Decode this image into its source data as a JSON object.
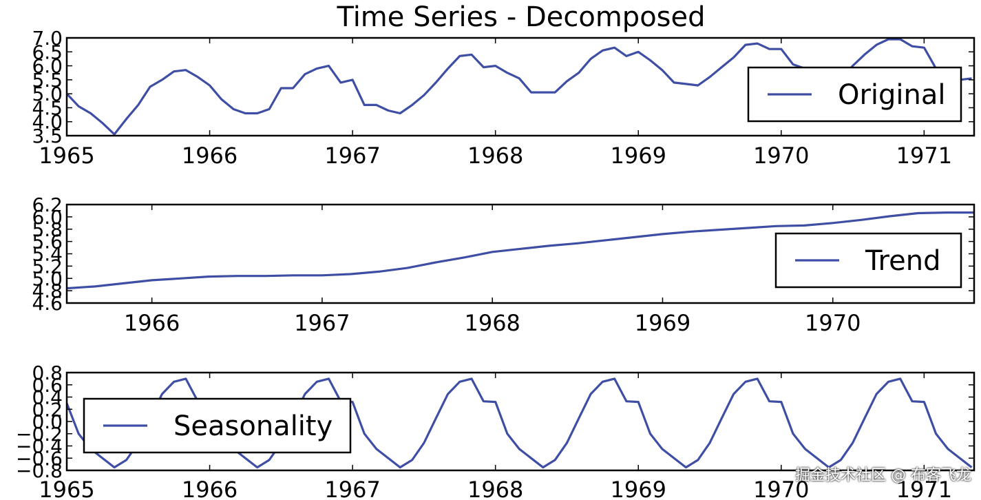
{
  "figure": {
    "title": "Time Series - Decomposed",
    "watermark": "掘金技术社区 @ 布客飞龙"
  },
  "colors": {
    "series": "#3f4ea5",
    "axes": "#000000",
    "background": "#ffffff"
  },
  "chart_data": [
    {
      "type": "line",
      "title": "",
      "xlabel": "",
      "ylabel": "",
      "xlim": [
        1965.0,
        1971.35
      ],
      "ylim": [
        3.5,
        7.0
      ],
      "xticks": [
        1965,
        1966,
        1967,
        1968,
        1969,
        1970,
        1971
      ],
      "yticks": [
        "3.5",
        "4.0",
        "4.5",
        "5.0",
        "5.5",
        "6.0",
        "6.5",
        "7.0"
      ],
      "legend": {
        "position": "right",
        "entries": [
          "Original"
        ]
      },
      "grid": false,
      "series": [
        {
          "name": "Original",
          "x": [
            1965.0,
            1965.083,
            1965.167,
            1965.25,
            1965.333,
            1965.417,
            1965.5,
            1965.583,
            1965.667,
            1965.75,
            1965.833,
            1965.917,
            1966.0,
            1966.083,
            1966.167,
            1966.25,
            1966.333,
            1966.417,
            1966.5,
            1966.583,
            1966.667,
            1966.75,
            1966.833,
            1966.917,
            1967.0,
            1967.083,
            1967.167,
            1967.25,
            1967.333,
            1967.417,
            1967.5,
            1967.583,
            1967.667,
            1967.75,
            1967.833,
            1967.917,
            1968.0,
            1968.083,
            1968.167,
            1968.25,
            1968.333,
            1968.417,
            1968.5,
            1968.583,
            1968.667,
            1968.75,
            1968.833,
            1968.917,
            1969.0,
            1969.083,
            1969.167,
            1969.25,
            1969.333,
            1969.417,
            1969.5,
            1969.583,
            1969.667,
            1969.75,
            1969.833,
            1969.917,
            1970.0,
            1970.083,
            1970.167,
            1970.25,
            1970.333,
            1970.417,
            1970.5,
            1970.583,
            1970.667,
            1970.75,
            1970.833,
            1970.917,
            1971.0,
            1971.083,
            1971.167,
            1971.25,
            1971.333
          ],
          "y": [
            5.0,
            4.55,
            4.3,
            3.95,
            3.55,
            4.1,
            4.6,
            5.25,
            5.5,
            5.8,
            5.85,
            5.6,
            5.3,
            4.8,
            4.45,
            4.3,
            4.3,
            4.45,
            5.2,
            5.2,
            5.7,
            5.9,
            6.0,
            5.4,
            5.5,
            4.6,
            4.6,
            4.4,
            4.3,
            4.6,
            4.95,
            5.4,
            5.9,
            6.35,
            6.4,
            5.95,
            6.0,
            5.75,
            5.55,
            5.05,
            5.05,
            5.05,
            5.45,
            5.75,
            6.25,
            6.55,
            6.65,
            6.35,
            6.5,
            6.2,
            5.85,
            5.4,
            5.35,
            5.3,
            5.6,
            5.95,
            6.3,
            6.75,
            6.8,
            6.6,
            6.6,
            6.05,
            5.9,
            5.55,
            5.55,
            5.55,
            6.0,
            6.4,
            6.75,
            6.95,
            6.95,
            6.7,
            6.65,
            5.9,
            5.6,
            5.5,
            5.55
          ]
        }
      ]
    },
    {
      "type": "line",
      "title": "",
      "xlabel": "",
      "ylabel": "",
      "xlim": [
        1965.5,
        1970.83
      ],
      "ylim": [
        4.6,
        6.2
      ],
      "xticks": [
        1966,
        1967,
        1968,
        1969,
        1970
      ],
      "yticks": [
        "4.6",
        "4.8",
        "5.0",
        "5.2",
        "5.4",
        "5.6",
        "5.8",
        "6.0",
        "6.2"
      ],
      "legend": {
        "position": "right",
        "entries": [
          "Trend"
        ]
      },
      "grid": false,
      "series": [
        {
          "name": "Trend",
          "x": [
            1965.5,
            1965.667,
            1965.833,
            1966.0,
            1966.167,
            1966.333,
            1966.5,
            1966.667,
            1966.833,
            1967.0,
            1967.167,
            1967.333,
            1967.5,
            1967.667,
            1967.833,
            1968.0,
            1968.167,
            1968.333,
            1968.5,
            1968.667,
            1968.833,
            1969.0,
            1969.167,
            1969.333,
            1969.5,
            1969.667,
            1969.833,
            1970.0,
            1970.167,
            1970.333,
            1970.5,
            1970.667,
            1970.833
          ],
          "y": [
            4.84,
            4.87,
            4.92,
            4.97,
            5.0,
            5.03,
            5.04,
            5.04,
            5.05,
            5.05,
            5.07,
            5.11,
            5.17,
            5.26,
            5.34,
            5.43,
            5.48,
            5.53,
            5.57,
            5.62,
            5.67,
            5.72,
            5.76,
            5.79,
            5.82,
            5.85,
            5.86,
            5.9,
            5.95,
            6.01,
            6.06,
            6.07,
            6.07
          ]
        }
      ]
    },
    {
      "type": "line",
      "title": "",
      "xlabel": "",
      "ylabel": "",
      "xlim": [
        1965.0,
        1971.35
      ],
      "ylim": [
        -0.8,
        0.8
      ],
      "xticks": [
        1965,
        1966,
        1967,
        1968,
        1969,
        1970,
        1971
      ],
      "yticks": [
        "−0.8",
        "−0.6",
        "−0.4",
        "−0.2",
        "0.0",
        "0.2",
        "0.4",
        "0.6",
        "0.8"
      ],
      "legend": {
        "position": "left",
        "entries": [
          "Seasonality"
        ]
      },
      "grid": false,
      "series": [
        {
          "name": "Seasonality",
          "x": [
            1965.0,
            1965.083,
            1965.167,
            1965.25,
            1965.333,
            1965.417,
            1965.5,
            1965.583,
            1965.667,
            1965.75,
            1965.833,
            1965.917,
            1966.0,
            1966.083,
            1966.167,
            1966.25,
            1966.333,
            1966.417,
            1966.5,
            1966.583,
            1966.667,
            1966.75,
            1966.833,
            1966.917,
            1967.0,
            1967.083,
            1967.167,
            1967.25,
            1967.333,
            1967.417,
            1967.5,
            1967.583,
            1967.667,
            1967.75,
            1967.833,
            1967.917,
            1968.0,
            1968.083,
            1968.167,
            1968.25,
            1968.333,
            1968.417,
            1968.5,
            1968.583,
            1968.667,
            1968.75,
            1968.833,
            1968.917,
            1969.0,
            1969.083,
            1969.167,
            1969.25,
            1969.333,
            1969.417,
            1969.5,
            1969.583,
            1969.667,
            1969.75,
            1969.833,
            1969.917,
            1970.0,
            1970.083,
            1970.167,
            1970.25,
            1970.333,
            1970.417,
            1970.5,
            1970.583,
            1970.667,
            1970.75,
            1970.833,
            1970.917,
            1971.0,
            1971.083,
            1971.167,
            1971.25,
            1971.333
          ],
          "y": [
            0.3,
            -0.2,
            -0.45,
            -0.6,
            -0.75,
            -0.63,
            -0.35,
            0.05,
            0.45,
            0.65,
            0.7,
            0.33,
            0.32,
            -0.2,
            -0.45,
            -0.6,
            -0.75,
            -0.63,
            -0.35,
            0.05,
            0.45,
            0.65,
            0.7,
            0.33,
            0.32,
            -0.2,
            -0.45,
            -0.6,
            -0.75,
            -0.63,
            -0.35,
            0.05,
            0.45,
            0.65,
            0.7,
            0.33,
            0.32,
            -0.2,
            -0.45,
            -0.6,
            -0.75,
            -0.63,
            -0.35,
            0.05,
            0.45,
            0.65,
            0.7,
            0.33,
            0.32,
            -0.2,
            -0.45,
            -0.6,
            -0.75,
            -0.63,
            -0.35,
            0.05,
            0.45,
            0.65,
            0.7,
            0.33,
            0.32,
            -0.2,
            -0.45,
            -0.6,
            -0.75,
            -0.63,
            -0.35,
            0.05,
            0.45,
            0.65,
            0.7,
            0.33,
            0.32,
            -0.2,
            -0.45,
            -0.6,
            -0.75
          ]
        }
      ]
    }
  ]
}
